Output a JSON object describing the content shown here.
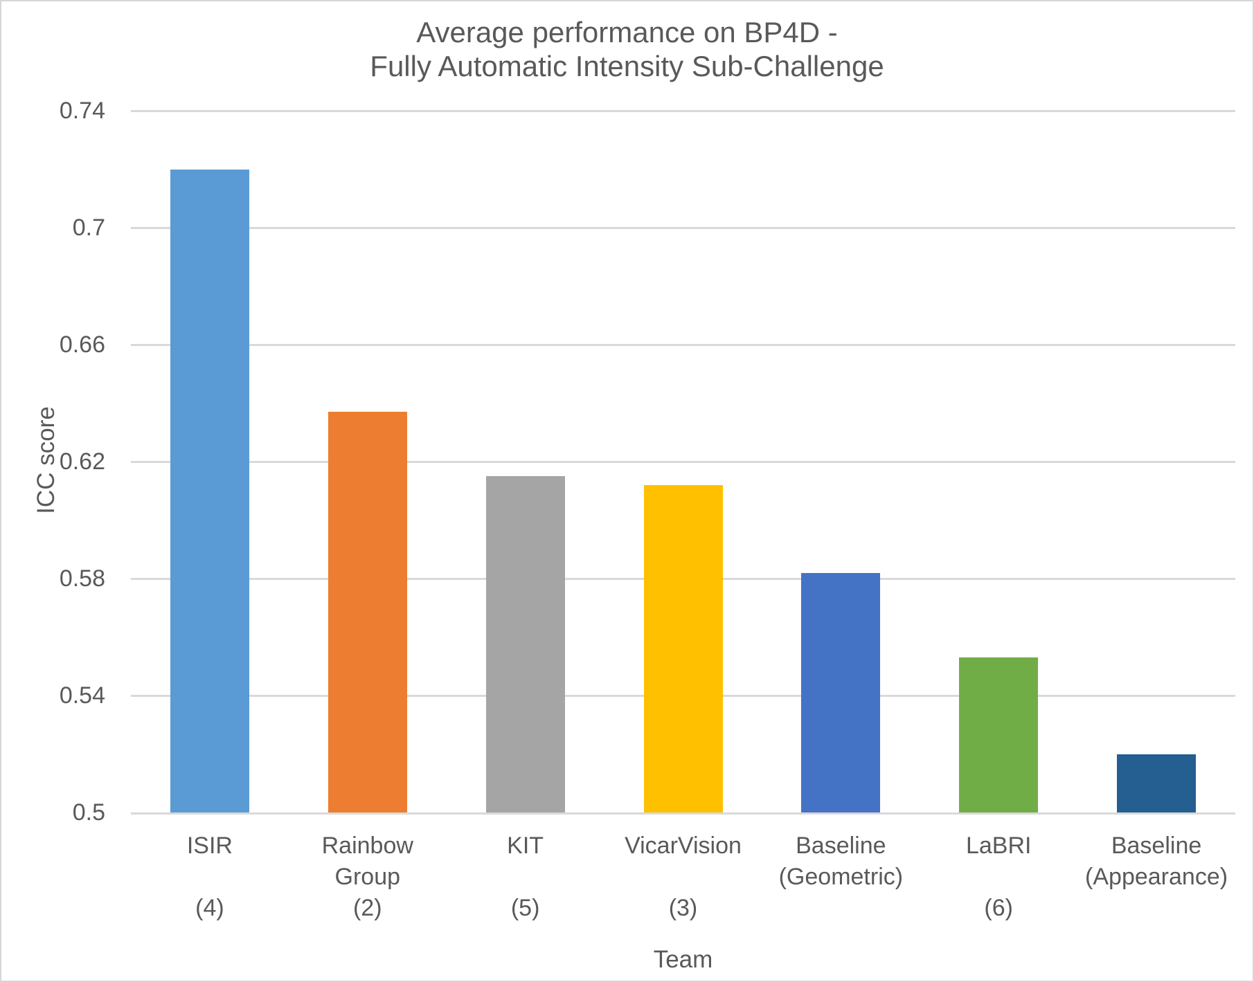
{
  "chart_data": {
    "type": "bar",
    "title_lines": [
      "Average performance on BP4D -",
      "Fully Automatic Intensity Sub-Challenge"
    ],
    "xlabel": "Team",
    "ylabel": "ICC score",
    "ylim": [
      0.5,
      0.74
    ],
    "grid": true,
    "legend": false,
    "yticks": [
      {
        "value": 0.74,
        "label": "0.74"
      },
      {
        "value": 0.7,
        "label": "0.7"
      },
      {
        "value": 0.66,
        "label": "0.66"
      },
      {
        "value": 0.62,
        "label": "0.62"
      },
      {
        "value": 0.58,
        "label": "0.58"
      },
      {
        "value": 0.54,
        "label": "0.54"
      },
      {
        "value": 0.5,
        "label": "0.5"
      }
    ],
    "bars": [
      {
        "team": "ISIR",
        "rank": "(4)",
        "label_lines": [
          "ISIR",
          "",
          "(4)"
        ],
        "value": 0.72,
        "color": "#5B9BD5"
      },
      {
        "team": "Rainbow Group",
        "rank": "(2)",
        "label_lines": [
          "Rainbow",
          "Group",
          "(2)"
        ],
        "value": 0.637,
        "color": "#ED7D31"
      },
      {
        "team": "KIT",
        "rank": "(5)",
        "label_lines": [
          "KIT",
          "",
          "(5)"
        ],
        "value": 0.615,
        "color": "#A5A5A5"
      },
      {
        "team": "VicarVision",
        "rank": "(3)",
        "label_lines": [
          "VicarVision",
          "",
          "(3)"
        ],
        "value": 0.612,
        "color": "#FFC000"
      },
      {
        "team": "Baseline (Geometric)",
        "rank": "",
        "label_lines": [
          "Baseline",
          "(Geometric)",
          ""
        ],
        "value": 0.582,
        "color": "#4472C4"
      },
      {
        "team": "LaBRI",
        "rank": "(6)",
        "label_lines": [
          "LaBRI",
          "",
          "(6)"
        ],
        "value": 0.553,
        "color": "#70AD47"
      },
      {
        "team": "Baseline (Appearance)",
        "rank": "",
        "label_lines": [
          "Baseline",
          "(Appearance)",
          ""
        ],
        "value": 0.52,
        "color": "#255E91"
      }
    ]
  },
  "colors": {
    "text": "#595959",
    "gridline": "#D9D9D9",
    "axis_line": "#D9D9D9",
    "background": "#FFFFFF",
    "border": "#D6D6D6"
  }
}
